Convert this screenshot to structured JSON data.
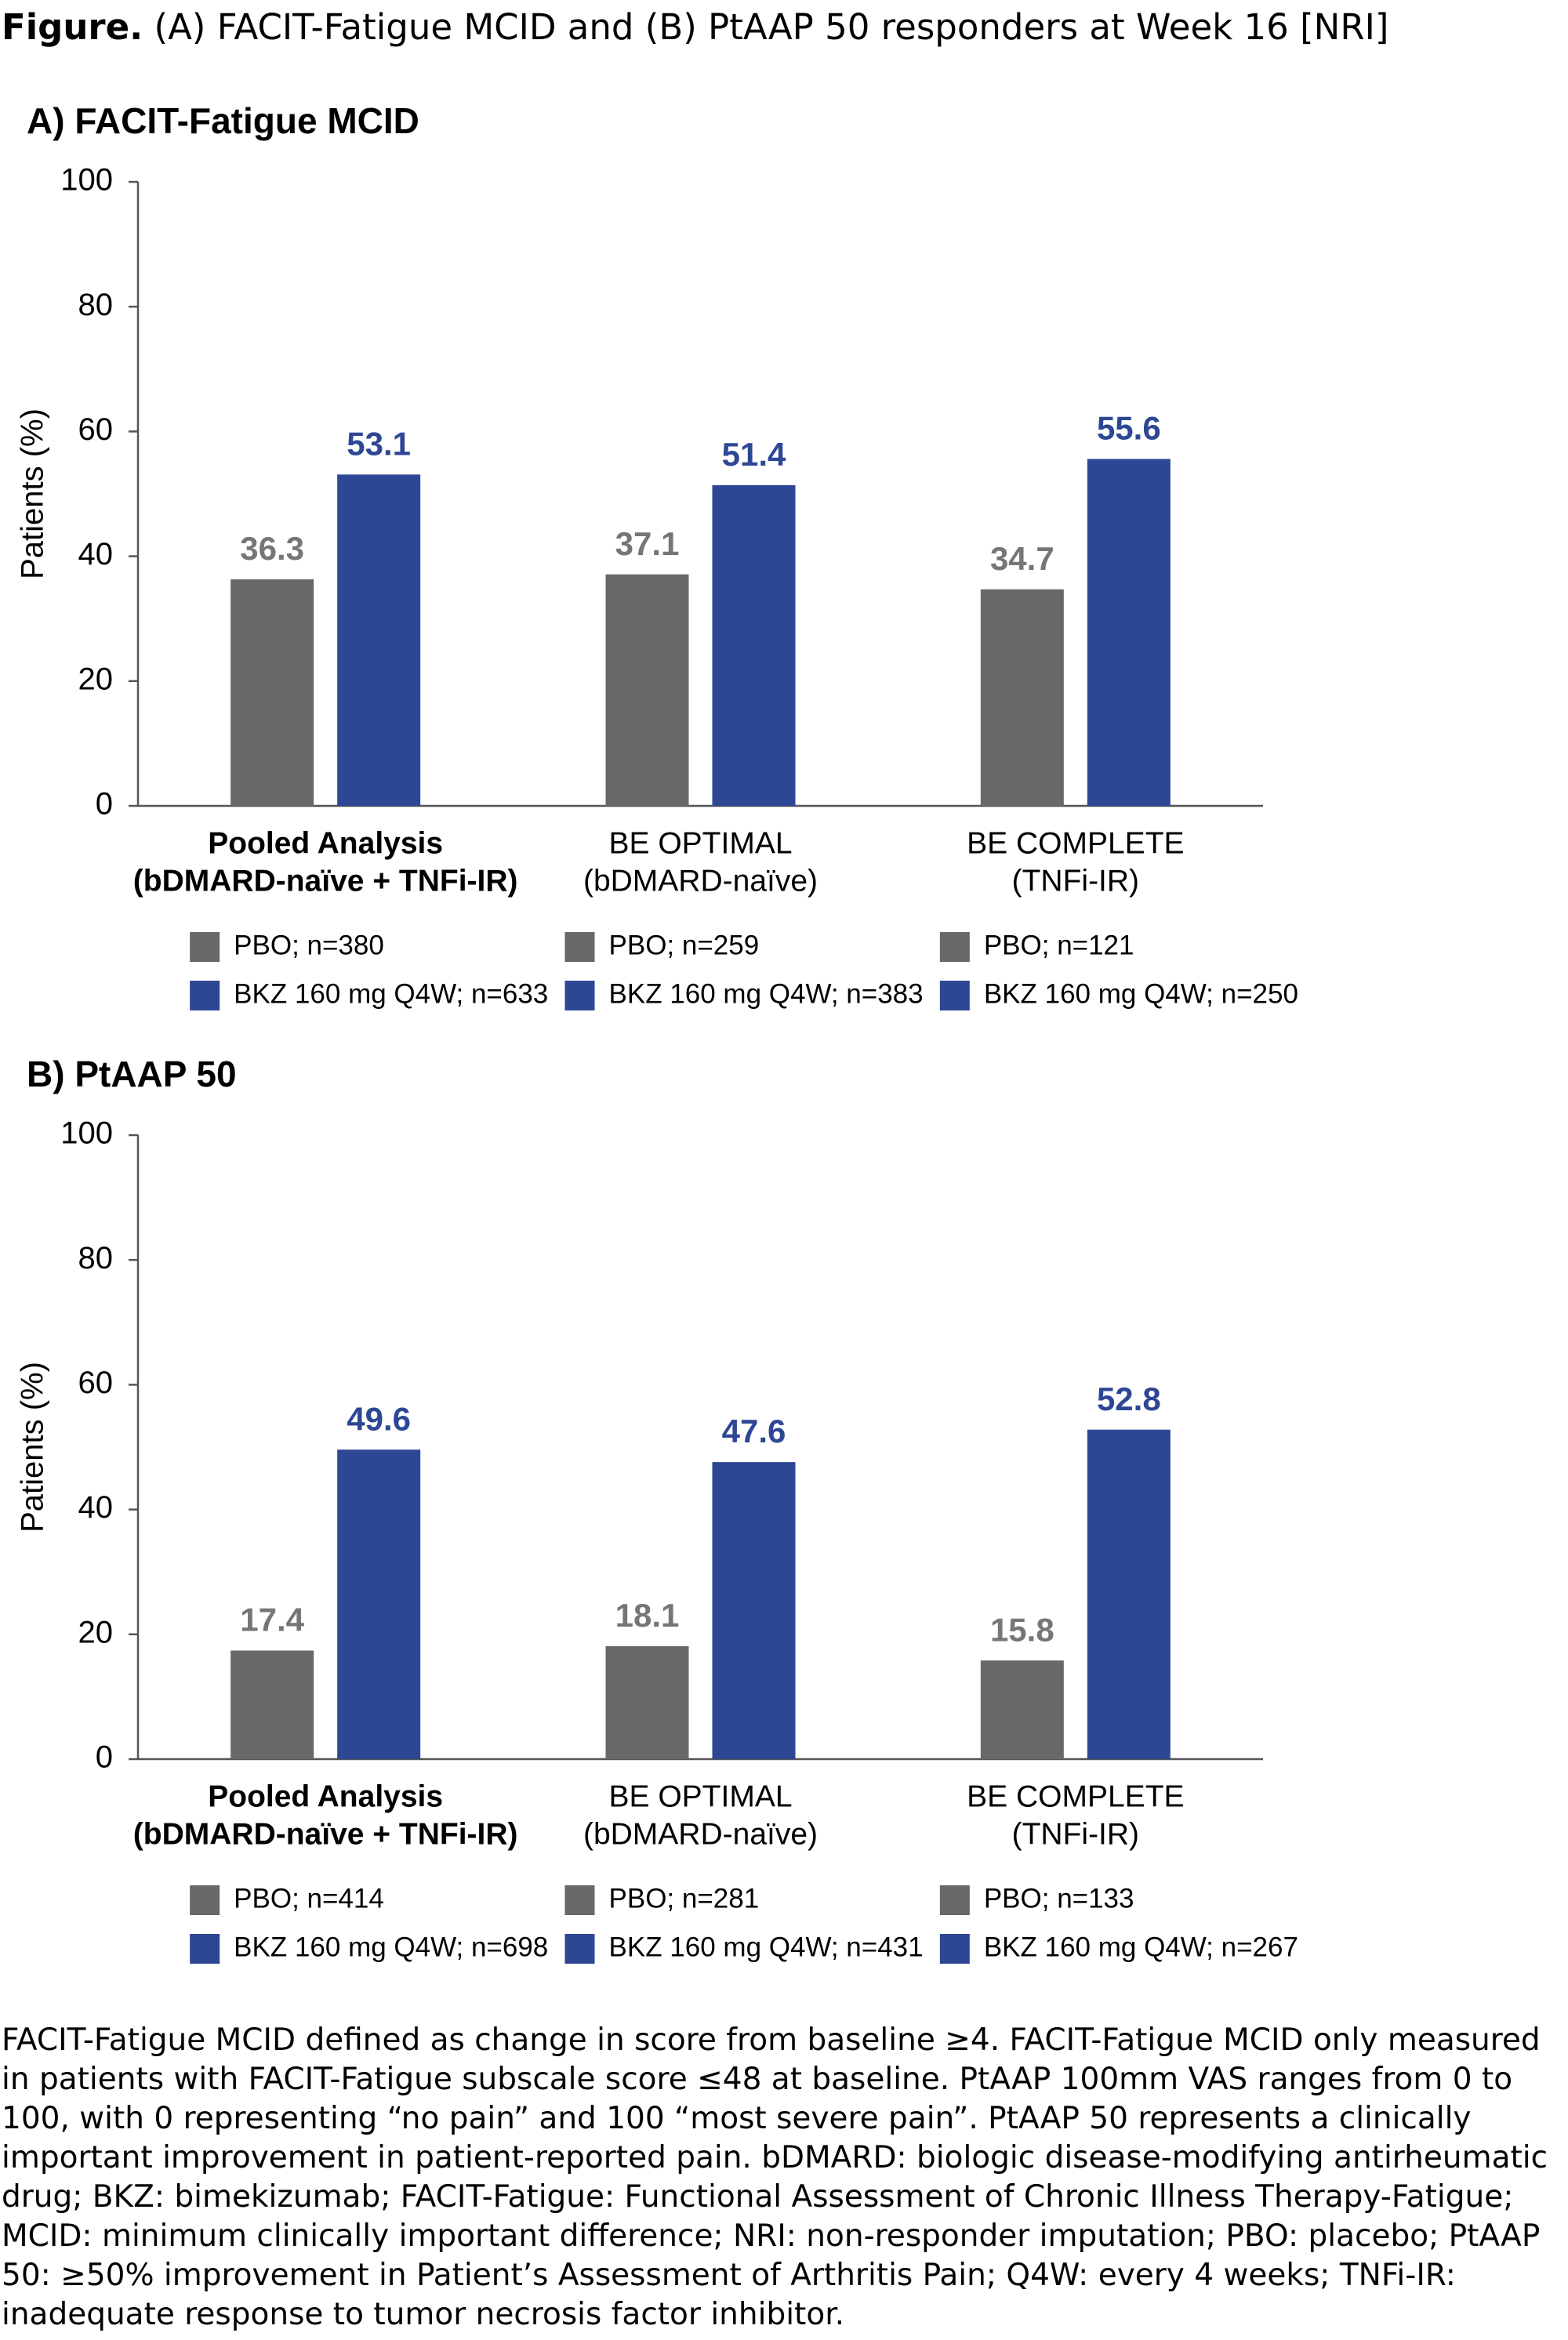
{
  "header": {
    "figure_label": "Figure.",
    "figure_title": "(A) FACIT-Fatigue MCID and (B) PtAAP 50 responders at Week 16 [NRI]"
  },
  "chart_data": [
    {
      "type": "bar",
      "title": "A) FACIT-Fatigue MCID",
      "y_label": "Patients (%)",
      "categories": [
        [
          "Pooled Analysis",
          "(bDMARD-naïve + TNFi-IR)"
        ],
        [
          "BE OPTIMAL",
          "(bDMARD-naïve)"
        ],
        [
          "BE COMPLETE",
          "(TNFi-IR)"
        ]
      ],
      "bold_categories": [
        true,
        false,
        false
      ],
      "series": [
        {
          "color": "#686868",
          "label_color": "#767676",
          "values": [
            36.3,
            37.1,
            34.7
          ],
          "legend_labels": [
            "PBO; n=380",
            "PBO; n=259",
            "PBO; n=121"
          ]
        },
        {
          "color": "#2e4795",
          "label_color": "#2e4795",
          "values": [
            53.1,
            51.4,
            55.6
          ],
          "legend_labels": [
            "BKZ 160 mg Q4W; n=633",
            "BKZ 160 mg Q4W; n=383",
            "BKZ 160 mg Q4W; n=250"
          ]
        }
      ],
      "ylim": [
        0,
        100
      ],
      "yticks": [
        0,
        20,
        40,
        60,
        80,
        100
      ],
      "grid": false
    },
    {
      "type": "bar",
      "title": "B) PtAAP 50",
      "y_label": "Patients (%)",
      "categories": [
        [
          "Pooled Analysis",
          "(bDMARD-naïve + TNFi-IR)"
        ],
        [
          "BE OPTIMAL",
          "(bDMARD-naïve)"
        ],
        [
          "BE COMPLETE",
          "(TNFi-IR)"
        ]
      ],
      "bold_categories": [
        true,
        false,
        false
      ],
      "series": [
        {
          "color": "#686868",
          "label_color": "#767676",
          "values": [
            17.4,
            18.1,
            15.8
          ],
          "legend_labels": [
            "PBO; n=414",
            "PBO; n=281",
            "PBO; n=133"
          ]
        },
        {
          "color": "#2e4795",
          "label_color": "#2e4795",
          "values": [
            49.6,
            47.6,
            52.8
          ],
          "legend_labels": [
            "BKZ 160 mg Q4W; n=698",
            "BKZ 160 mg Q4W; n=431",
            "BKZ 160 mg Q4W; n=267"
          ]
        }
      ],
      "ylim": [
        0,
        100
      ],
      "yticks": [
        0,
        20,
        40,
        60,
        80,
        100
      ],
      "grid": false
    }
  ],
  "footnote": "FACIT-Fatigue MCID defined as change in score from baseline ≥4. FACIT-Fatigue MCID only measured in patients with FACIT-Fatigue subscale score ≤48 at baseline. PtAAP 100mm VAS ranges from 0 to 100, with 0 representing “no pain” and 100 “most severe pain”. PtAAP 50 represents a clinically important improvement in patient-reported pain. bDMARD: biologic disease-modifying antirheumatic drug; BKZ: bimekizumab; FACIT-Fatigue: Functional Assessment of Chronic Illness Therapy-Fatigue; MCID: minimum clinically important difference; NRI: non-responder imputation; PBO: placebo; PtAAP 50: ≥50% improvement in Patient’s Assessment of Arthritis Pain; Q4W: every 4 weeks; TNFi-IR: inadequate response to tumor necrosis factor inhibitor."
}
